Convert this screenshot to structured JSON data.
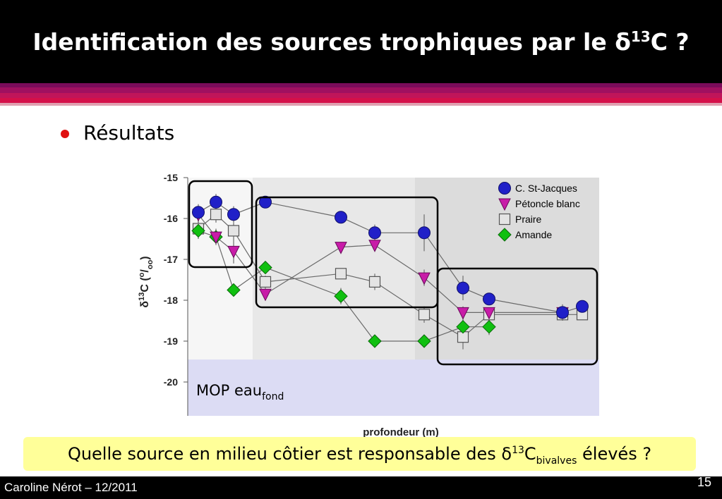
{
  "slide": {
    "title_prefix": "Identification des sources trophiques par le ",
    "title_symbol": "δ",
    "title_sup": "13",
    "title_suffix": "C ?",
    "bullet": "Résultats",
    "callout_prefix": "Quelle source en milieu côtier est responsable des ",
    "callout_symbol": "δ",
    "callout_sup": "13",
    "callout_c": "C",
    "callout_sub": "bivalves",
    "callout_suffix": " élevés ?",
    "footer_author": "Caroline Nérot – 12/2011",
    "footer_page": "15"
  },
  "colors": {
    "title_bar": "#000000",
    "stripe_purple": "#a01060",
    "stripe_red": "#d4104a",
    "st_jacques": "#2020c8",
    "petoncle": "#c81ca8",
    "praire": "#e4e4e4",
    "amande": "#10c010",
    "callout_bg": "#ffff99",
    "mop_band": "#dcdcf4"
  },
  "chart_data": {
    "type": "scatter",
    "title": "",
    "ylabel_symbol": "δ",
    "ylabel_sup": "13",
    "ylabel_c": "C (",
    "ylabel_o1": "o",
    "ylabel_slash": "/",
    "ylabel_o2": "oo",
    "ylabel_close": ")",
    "xlabel": "profondeur (m)",
    "ylim": [
      -20,
      -15
    ],
    "yticks": [
      "-15",
      "-16",
      "-17",
      "-18",
      "-19",
      "-20"
    ],
    "legend_position": "top-right",
    "band_label": "MOP eau",
    "band_sub": "fond",
    "band_range": [
      -20.8,
      -19.45
    ],
    "series": [
      {
        "name": "C. St-Jacques",
        "marker": "circle",
        "x": [
          1,
          2,
          3,
          4,
          5,
          6,
          7,
          8,
          9,
          10,
          11
        ],
        "y": [
          -15.85,
          -15.6,
          -15.9,
          -15.6,
          -15.97,
          -16.35,
          -16.35,
          -17.7,
          -17.97,
          -18.3,
          -18.15
        ],
        "err": [
          0.2,
          0.2,
          0.2,
          0.1,
          0.15,
          0.2,
          0.45,
          0.3,
          0.15,
          0.2,
          0.15
        ]
      },
      {
        "name": "Pétoncle blanc",
        "marker": "triangle",
        "x": [
          1,
          2,
          3,
          4,
          5,
          6,
          7,
          8,
          9,
          10
        ],
        "y": [
          -15.9,
          -16.45,
          -16.8,
          -17.85,
          -16.7,
          -16.65,
          -17.45,
          -18.3,
          -18.3,
          -18.3
        ],
        "err": [
          0.2,
          0.2,
          0.3,
          0.15,
          0.1,
          0.1,
          0.2,
          0.15,
          0.1,
          0.1
        ]
      },
      {
        "name": "Praire",
        "marker": "square",
        "x": [
          1,
          2,
          3,
          4,
          5,
          6,
          7,
          8,
          9,
          10,
          11
        ],
        "y": [
          -16.25,
          -15.9,
          -16.3,
          -17.55,
          -17.35,
          -17.55,
          -18.35,
          -18.9,
          -18.35,
          -18.35,
          -18.35
        ],
        "err": [
          0.2,
          0.2,
          0.2,
          0.15,
          0.1,
          0.2,
          0.2,
          0.3,
          0.15,
          0.1,
          0.1
        ]
      },
      {
        "name": "Amande",
        "marker": "diamond",
        "x": [
          1,
          2,
          3,
          4,
          5,
          6,
          7,
          8,
          9
        ],
        "y": [
          -16.3,
          -16.45,
          -17.75,
          -17.2,
          -17.9,
          -19.0,
          -19.0,
          -18.65,
          -18.65
        ],
        "err": [
          0.2,
          0.15,
          0.1,
          0.15,
          0.2,
          0.15,
          0.15,
          0.2,
          0.2
        ]
      }
    ]
  }
}
